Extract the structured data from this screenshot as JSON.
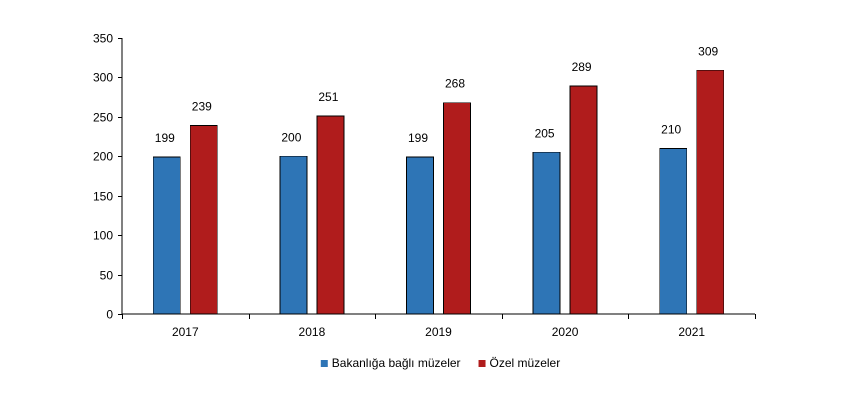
{
  "chart_data": {
    "type": "bar",
    "title": "",
    "xlabel": "",
    "ylabel": "",
    "categories": [
      "2017",
      "2018",
      "2019",
      "2020",
      "2021"
    ],
    "series": [
      {
        "name": "Bakanlığa bağlı müzeler",
        "color": "#2e75b6",
        "values": [
          199,
          200,
          199,
          205,
          210
        ]
      },
      {
        "name": "Özel müzeler",
        "color": "#b01c1c",
        "values": [
          239,
          251,
          268,
          289,
          309
        ]
      }
    ],
    "ylim": [
      0,
      350
    ],
    "yticks": [
      0,
      50,
      100,
      150,
      200,
      250,
      300,
      350
    ],
    "grid": false,
    "legend_position": "bottom"
  }
}
